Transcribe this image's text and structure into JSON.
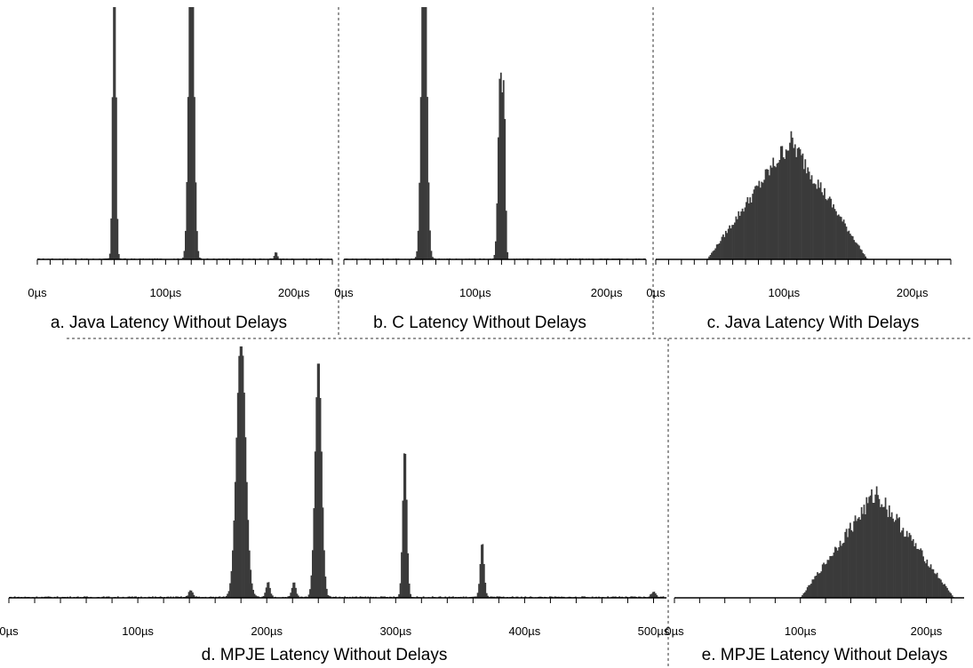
{
  "colors": {
    "bar": "#3a3a3a",
    "axis": "#000000",
    "divider": "#333333",
    "background": "#ffffff"
  },
  "chart_data": [
    {
      "type": "bar",
      "caption": "a. Java Latency Without Delays",
      "unit": "µs",
      "xlim": [
        0,
        230
      ],
      "bin_width": 1,
      "tick_labels": [
        "0µs",
        "100µs",
        "200µs"
      ],
      "minor_tick_step": 10,
      "label_tick_step": 100,
      "peaks": [
        {
          "center": 60,
          "sigma": 1.2,
          "height": 1.4
        },
        {
          "center": 120,
          "sigma": 2.0,
          "height": 1.4
        },
        {
          "center": 186,
          "sigma": 1.0,
          "height": 0.03
        }
      ],
      "noise": 0.004
    },
    {
      "type": "bar",
      "caption": "b. C Latency Without Delays",
      "unit": "µs",
      "xlim": [
        0,
        230
      ],
      "bin_width": 1,
      "tick_labels": [
        "0µs",
        "100µs",
        "200µs"
      ],
      "minor_tick_step": 10,
      "label_tick_step": 100,
      "peaks": [
        {
          "center": 61,
          "sigma": 2.0,
          "height": 1.4
        },
        {
          "center": 119,
          "sigma": 1.6,
          "height": 0.75
        },
        {
          "center": 122,
          "sigma": 1.0,
          "height": 0.55
        }
      ],
      "noise": 0.004
    },
    {
      "type": "bar",
      "caption": "c. Java Latency With Delays",
      "unit": "µs",
      "xlim": [
        0,
        230
      ],
      "bin_width": 1,
      "tick_labels": [
        "0µs",
        "100µs",
        "200µs"
      ],
      "minor_tick_step": 10,
      "label_tick_step": 100,
      "triangle": {
        "start": 40,
        "peak": 105,
        "end": 165,
        "height": 0.47
      },
      "noise": 0.05
    },
    {
      "type": "bar",
      "caption": "d. MPJE Latency Without Delays",
      "unit": "µs",
      "xlim": [
        0,
        510
      ],
      "bin_width": 1,
      "tick_labels": [
        "0µs",
        "100µs",
        "200µs",
        "300µs",
        "400µs",
        "500µs"
      ],
      "minor_tick_step": 20,
      "label_tick_step": 100,
      "peaks": [
        {
          "center": 180,
          "sigma": 3.5,
          "height": 1.05
        },
        {
          "center": 240,
          "sigma": 2.5,
          "height": 0.95
        },
        {
          "center": 307,
          "sigma": 1.6,
          "height": 0.6
        },
        {
          "center": 367,
          "sigma": 1.5,
          "height": 0.22
        },
        {
          "center": 201,
          "sigma": 1.5,
          "height": 0.06
        },
        {
          "center": 221,
          "sigma": 1.5,
          "height": 0.06
        },
        {
          "center": 141,
          "sigma": 1.5,
          "height": 0.03
        },
        {
          "center": 500,
          "sigma": 2,
          "height": 0.02
        }
      ],
      "noise": 0.006
    },
    {
      "type": "bar",
      "caption": "e. MPJE Latency Without Delays",
      "unit": "µs",
      "xlim": [
        0,
        230
      ],
      "bin_width": 1,
      "tick_labels": [
        "0µs",
        "100µs",
        "200µs"
      ],
      "minor_tick_step": 20,
      "label_tick_step": 100,
      "triangle": {
        "start": 100,
        "peak": 160,
        "end": 222,
        "height": 0.42
      },
      "noise": 0.05
    }
  ]
}
